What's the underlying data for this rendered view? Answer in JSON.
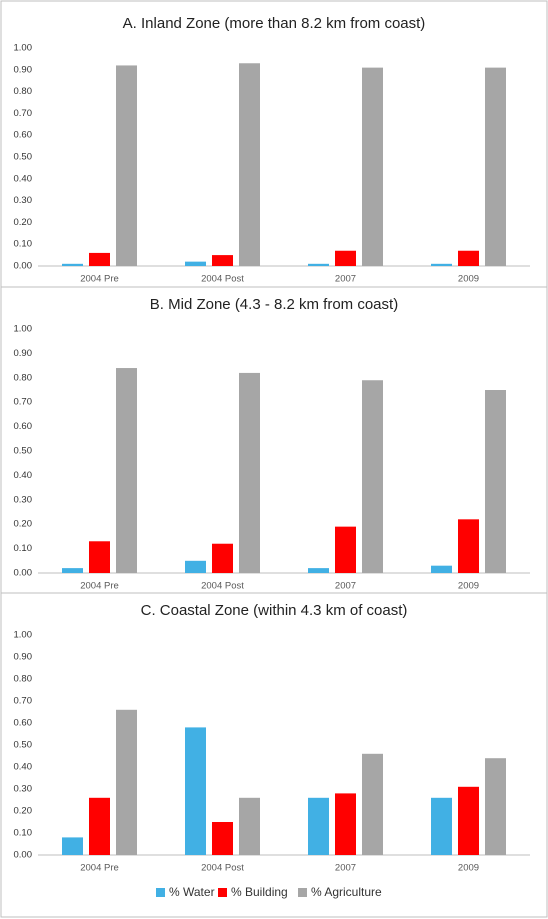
{
  "chart_data": [
    {
      "type": "bar",
      "title": "A. Inland Zone (more than 8.2 km from coast)",
      "categories": [
        "2004 Pre",
        "2004 Post",
        "2007",
        "2009"
      ],
      "series": [
        {
          "color": "#41b0e4",
          "values": [
            0.01,
            0.02,
            0.01,
            0.01
          ]
        },
        {
          "color": "#ff0000",
          "values": [
            0.06,
            0.05,
            0.07,
            0.07
          ]
        },
        {
          "color": "#a6a6a6",
          "values": [
            0.92,
            0.93,
            0.91,
            0.91
          ]
        }
      ],
      "ylim": [
        0,
        1
      ],
      "yticks": [
        {
          "value": 0,
          "label": "0.00"
        },
        {
          "value": 0.1,
          "label": "0.10"
        },
        {
          "value": 0.2,
          "label": "0.20"
        },
        {
          "value": 0.3,
          "label": "0.30"
        },
        {
          "value": 0.4,
          "label": "0.40"
        },
        {
          "value": 0.5,
          "label": "0.50"
        },
        {
          "value": 0.6,
          "label": "0.60"
        },
        {
          "value": 0.7,
          "label": "0.70"
        },
        {
          "value": 0.8,
          "label": "0.80"
        },
        {
          "value": 0.9,
          "label": "0.90"
        },
        {
          "value": 1,
          "label": "1.00"
        }
      ],
      "grid": false
    },
    {
      "type": "bar",
      "title": "B. Mid Zone (4.3 - 8.2 km from coast)",
      "categories": [
        "2004 Pre",
        "2004 Post",
        "2007",
        "2009"
      ],
      "series": [
        {
          "color": "#41b0e4",
          "values": [
            0.02,
            0.05,
            0.02,
            0.03
          ]
        },
        {
          "color": "#ff0000",
          "values": [
            0.13,
            0.12,
            0.19,
            0.22
          ]
        },
        {
          "color": "#a6a6a6",
          "values": [
            0.84,
            0.82,
            0.79,
            0.75
          ]
        }
      ],
      "ylim": [
        0,
        1
      ],
      "yticks": [
        {
          "value": 0,
          "label": "0.00"
        },
        {
          "value": 0.1,
          "label": "0.10"
        },
        {
          "value": 0.2,
          "label": "0.20"
        },
        {
          "value": 0.3,
          "label": "0.30"
        },
        {
          "value": 0.4,
          "label": "0.40"
        },
        {
          "value": 0.5,
          "label": "0.50"
        },
        {
          "value": 0.6,
          "label": "0.60"
        },
        {
          "value": 0.7,
          "label": "0.70"
        },
        {
          "value": 0.8,
          "label": "0.80"
        },
        {
          "value": 0.9,
          "label": "0.90"
        },
        {
          "value": 1,
          "label": "1.00"
        }
      ],
      "grid": false
    },
    {
      "type": "bar",
      "title": "C. Coastal Zone (within 4.3 km of coast)",
      "categories": [
        "2004 Pre",
        "2004 Post",
        "2007",
        "2009"
      ],
      "series": [
        {
          "name": "% Water",
          "color": "#41b0e4",
          "values": [
            0.08,
            0.58,
            0.26,
            0.26
          ]
        },
        {
          "name": "% Building",
          "color": "#ff0000",
          "values": [
            0.26,
            0.15,
            0.28,
            0.31
          ]
        },
        {
          "name": "% Agriculture",
          "color": "#a6a6a6",
          "values": [
            0.66,
            0.26,
            0.46,
            0.44
          ]
        }
      ],
      "ylim": [
        0,
        1
      ],
      "yticks": [
        {
          "value": 0,
          "label": "0.00"
        },
        {
          "value": 0.1,
          "label": "0.10"
        },
        {
          "value": 0.2,
          "label": "0.20"
        },
        {
          "value": 0.3,
          "label": "0.30"
        },
        {
          "value": 0.4,
          "label": "0.40"
        },
        {
          "value": 0.5,
          "label": "0.50"
        },
        {
          "value": 0.6,
          "label": "0.60"
        },
        {
          "value": 0.7,
          "label": "0.70"
        },
        {
          "value": 0.8,
          "label": "0.80"
        },
        {
          "value": 0.9,
          "label": "0.90"
        },
        {
          "value": 1,
          "label": "1.00"
        }
      ],
      "grid": false
    }
  ]
}
